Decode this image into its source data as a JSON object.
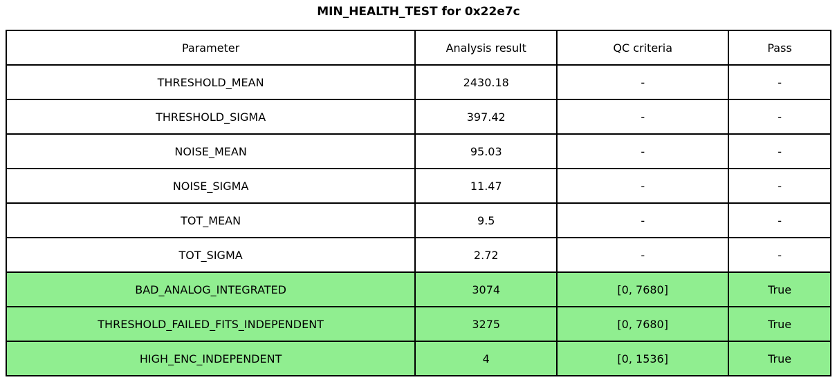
{
  "title": "MIN_HEALTH_TEST for 0x22e7c",
  "colors": {
    "highlight_green": "#90EE90",
    "border": "#000000",
    "background": "#ffffff"
  },
  "table": {
    "columns": [
      "Parameter",
      "Analysis result",
      "QC criteria",
      "Pass"
    ],
    "rows": [
      {
        "parameter": "THRESHOLD_MEAN",
        "result": "2430.18",
        "qc": "-",
        "pass": "-",
        "highlight": false
      },
      {
        "parameter": "THRESHOLD_SIGMA",
        "result": "397.42",
        "qc": "-",
        "pass": "-",
        "highlight": false
      },
      {
        "parameter": "NOISE_MEAN",
        "result": "95.03",
        "qc": "-",
        "pass": "-",
        "highlight": false
      },
      {
        "parameter": "NOISE_SIGMA",
        "result": "11.47",
        "qc": "-",
        "pass": "-",
        "highlight": false
      },
      {
        "parameter": "TOT_MEAN",
        "result": "9.5",
        "qc": "-",
        "pass": "-",
        "highlight": false
      },
      {
        "parameter": "TOT_SIGMA",
        "result": "2.72",
        "qc": "-",
        "pass": "-",
        "highlight": false
      },
      {
        "parameter": "BAD_ANALOG_INTEGRATED",
        "result": "3074",
        "qc": "[0, 7680]",
        "pass": "True",
        "highlight": true
      },
      {
        "parameter": "THRESHOLD_FAILED_FITS_INDEPENDENT",
        "result": "3275",
        "qc": "[0, 7680]",
        "pass": "True",
        "highlight": true
      },
      {
        "parameter": "HIGH_ENC_INDEPENDENT",
        "result": "4",
        "qc": "[0, 1536]",
        "pass": "True",
        "highlight": true
      }
    ]
  },
  "chart_data": {
    "type": "table",
    "title": "MIN_HEALTH_TEST for 0x22e7c",
    "columns": [
      "Parameter",
      "Analysis result",
      "QC criteria",
      "Pass"
    ],
    "cells": [
      [
        "THRESHOLD_MEAN",
        2430.18,
        "-",
        "-"
      ],
      [
        "THRESHOLD_SIGMA",
        397.42,
        "-",
        "-"
      ],
      [
        "NOISE_MEAN",
        95.03,
        "-",
        "-"
      ],
      [
        "NOISE_SIGMA",
        11.47,
        "-",
        "-"
      ],
      [
        "TOT_MEAN",
        9.5,
        "-",
        "-"
      ],
      [
        "TOT_SIGMA",
        2.72,
        "-",
        "-"
      ],
      [
        "BAD_ANALOG_INTEGRATED",
        3074,
        "[0, 7680]",
        "True"
      ],
      [
        "THRESHOLD_FAILED_FITS_INDEPENDENT",
        3275,
        "[0, 7680]",
        "True"
      ],
      [
        "HIGH_ENC_INDEPENDENT",
        4,
        "[0, 1536]",
        "True"
      ]
    ],
    "highlighted_row_indices": [
      6,
      7,
      8
    ],
    "highlight_color": "#90EE90",
    "grid": true,
    "legend_position": "none"
  }
}
